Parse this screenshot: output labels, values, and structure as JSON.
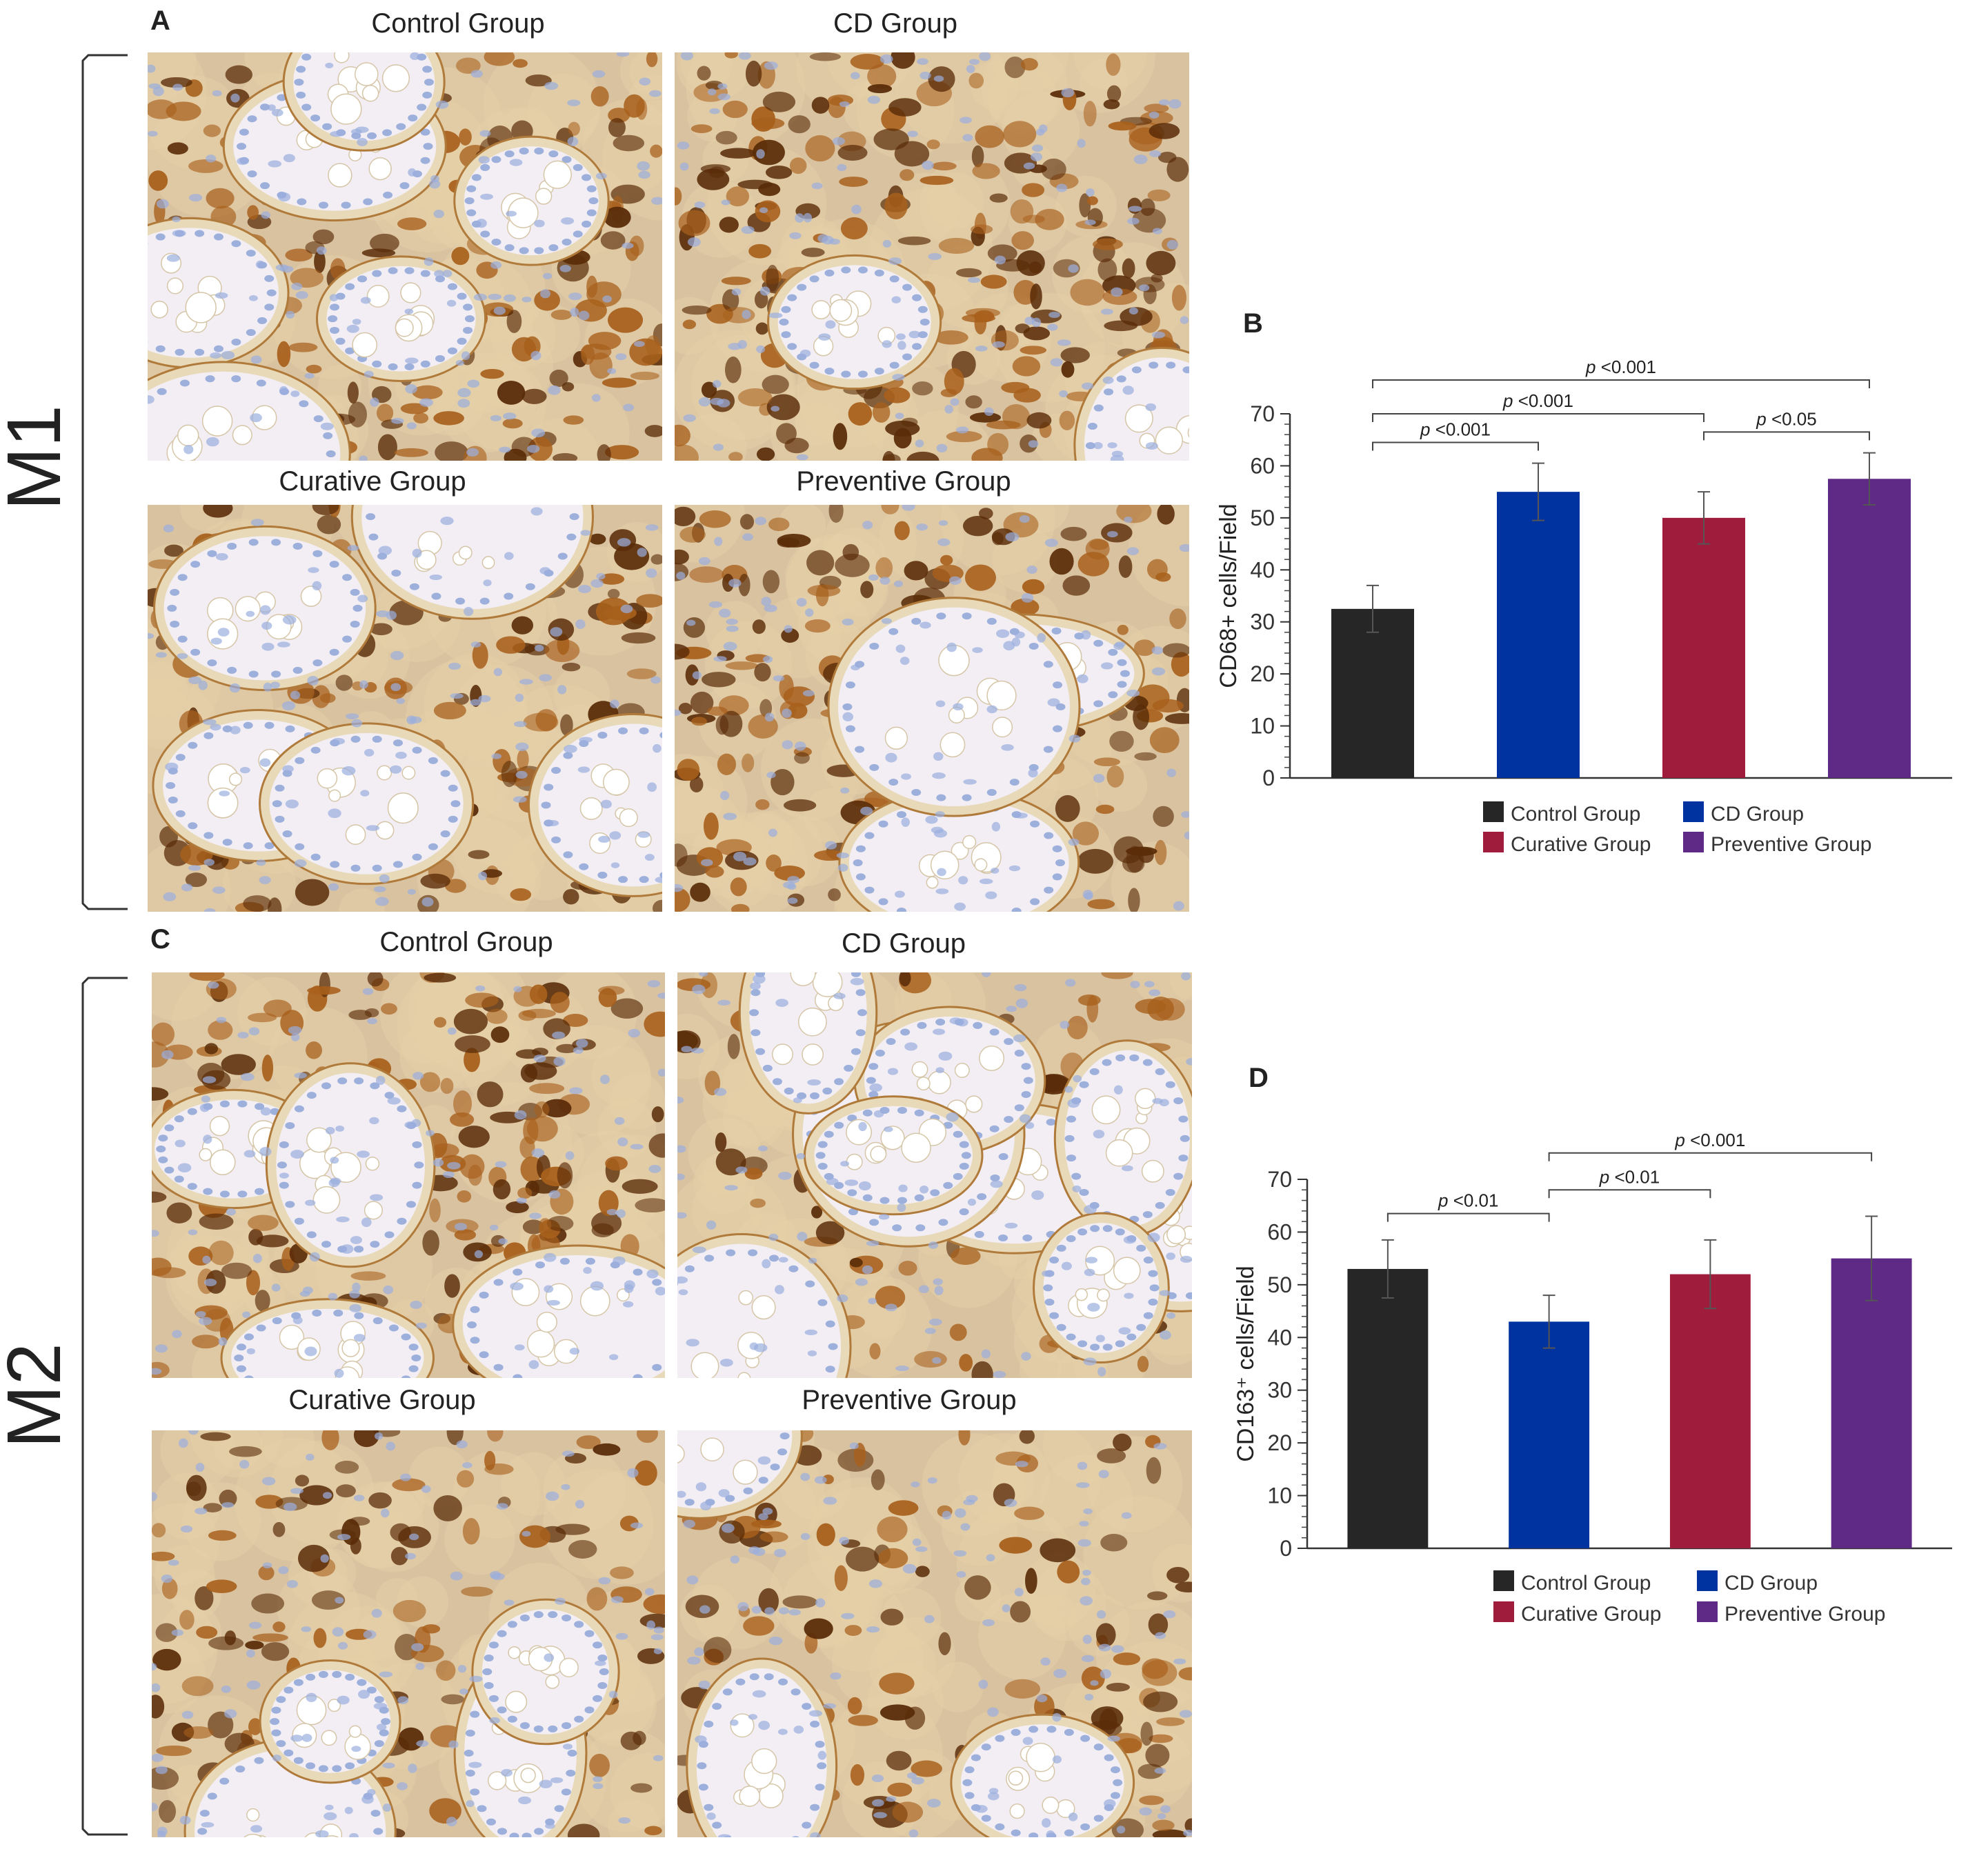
{
  "colors": {
    "control": "#262626",
    "cd": "#0033a0",
    "curative": "#a01c3c",
    "preventive": "#5e2a85",
    "stain_brown": "#8a4a12",
    "stain_blue": "#9fb2dc"
  },
  "section_labels": {
    "m1": "M1",
    "m2": "M2"
  },
  "panel_a": {
    "letter": "A",
    "images": [
      {
        "title": "Control Group",
        "icon": "micrograph-control-m1"
      },
      {
        "title": "CD Group",
        "icon": "micrograph-cd-m1"
      },
      {
        "title": "Curative Group",
        "icon": "micrograph-curative-m1"
      },
      {
        "title": "Preventive Group",
        "icon": "micrograph-preventive-m1"
      }
    ]
  },
  "panel_c": {
    "letter": "C",
    "images": [
      {
        "title": "Control Group",
        "icon": "micrograph-control-m2"
      },
      {
        "title": "CD Group",
        "icon": "micrograph-cd-m2"
      },
      {
        "title": "Curative Group",
        "icon": "micrograph-curative-m2"
      },
      {
        "title": "Preventive Group",
        "icon": "micrograph-preventive-m2"
      }
    ]
  },
  "chart_data": [
    {
      "panel": "B",
      "type": "bar",
      "categories": [
        "Control Group",
        "CD Group",
        "Curative Group",
        "Preventive Group"
      ],
      "values": [
        32.5,
        55,
        50,
        57.5
      ],
      "errors": [
        4.5,
        5.5,
        5,
        5
      ],
      "ylabel": "CD68+ cells/Field",
      "ylim": [
        0,
        70
      ],
      "yticks": [
        0,
        10,
        20,
        30,
        40,
        50,
        60,
        70
      ],
      "grid": false,
      "legend_position": "bottom",
      "legend": [
        "Control Group",
        "CD Group",
        "Curative Group",
        "Preventive Group"
      ],
      "significance": [
        {
          "from": 0,
          "to": 1,
          "p": "p",
          "label": " <0.001"
        },
        {
          "from": 0,
          "to": 2,
          "p": "p",
          "label": " <0.001"
        },
        {
          "from": 0,
          "to": 3,
          "p": "p",
          "label": " <0.001"
        },
        {
          "from": 2,
          "to": 3,
          "p": "p",
          "label": "  <0.05"
        }
      ]
    },
    {
      "panel": "D",
      "type": "bar",
      "categories": [
        "Control Group",
        "CD Group",
        "Curative Group",
        "Preventive Group"
      ],
      "values": [
        53,
        43,
        52,
        55
      ],
      "errors": [
        5.5,
        5,
        6.5,
        8
      ],
      "ylabel": "CD163⁺ cells/Field",
      "ylim": [
        0,
        70
      ],
      "yticks": [
        0,
        10,
        20,
        30,
        40,
        50,
        60,
        70
      ],
      "grid": false,
      "legend_position": "bottom",
      "legend": [
        "Control Group",
        "CD Group",
        "Curative Group",
        "Preventive Group"
      ],
      "significance": [
        {
          "from": 0,
          "to": 1,
          "p": "p",
          "label": " <0.01"
        },
        {
          "from": 1,
          "to": 2,
          "p": "p",
          "label": " <0.01"
        },
        {
          "from": 1,
          "to": 3,
          "p": "p",
          "label": " <0.001"
        }
      ]
    }
  ]
}
